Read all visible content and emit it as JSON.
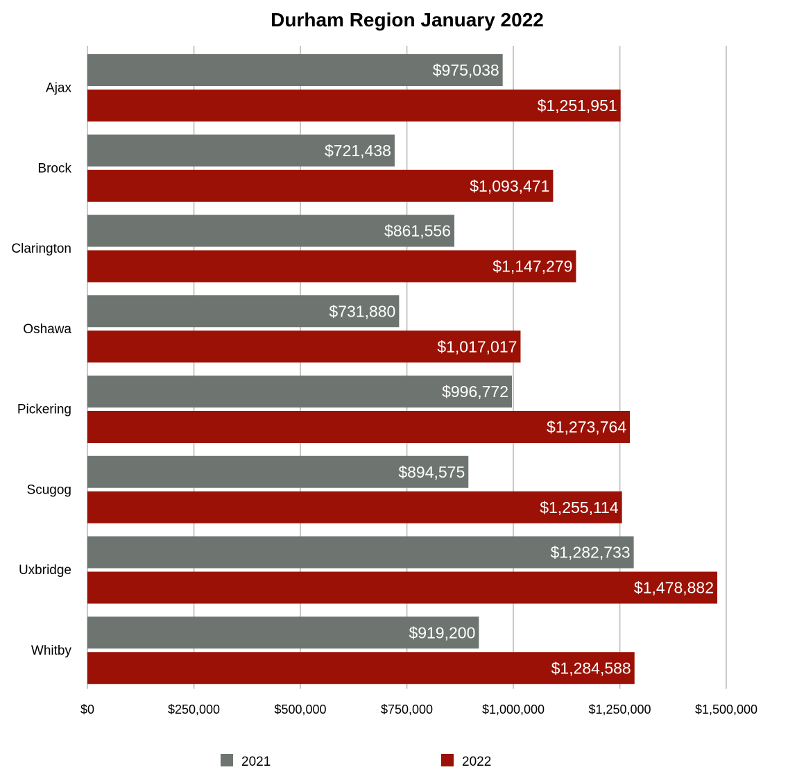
{
  "chart_data": {
    "type": "bar",
    "orientation": "horizontal",
    "title": "Durham Region January 2022",
    "categories": [
      "Ajax",
      "Brock",
      "Clarington",
      "Oshawa",
      "Pickering",
      "Scugog",
      "Uxbridge",
      "Whitby"
    ],
    "series": [
      {
        "name": "2021",
        "color": "#6e7571",
        "values": [
          975038,
          721438,
          861556,
          731880,
          996772,
          894575,
          1282733,
          919200
        ],
        "labels": [
          "$975,038",
          "$721,438",
          "$861,556",
          "$731,880",
          "$996,772",
          "$894,575",
          "$1,282,733",
          "$919,200"
        ]
      },
      {
        "name": "2022",
        "color": "#9b1106",
        "values": [
          1251951,
          1093471,
          1147279,
          1017017,
          1273764,
          1255114,
          1478882,
          1284588
        ],
        "labels": [
          "$1,251,951",
          "$1,093,471",
          "$1,147,279",
          "$1,017,017",
          "$1,273,764",
          "$1,255,114",
          "$1,478,882",
          "$1,284,588"
        ]
      }
    ],
    "x_ticks": [
      0,
      250000,
      500000,
      750000,
      1000000,
      1250000,
      1500000
    ],
    "x_tick_labels": [
      "$0",
      "$250,000",
      "$500,000",
      "$750,000",
      "$1,000,000",
      "$1,250,000",
      "$1,500,000"
    ],
    "xlim": [
      0,
      1500000
    ],
    "xlabel": "",
    "ylabel": "",
    "grid": true,
    "legend_position": "bottom"
  }
}
